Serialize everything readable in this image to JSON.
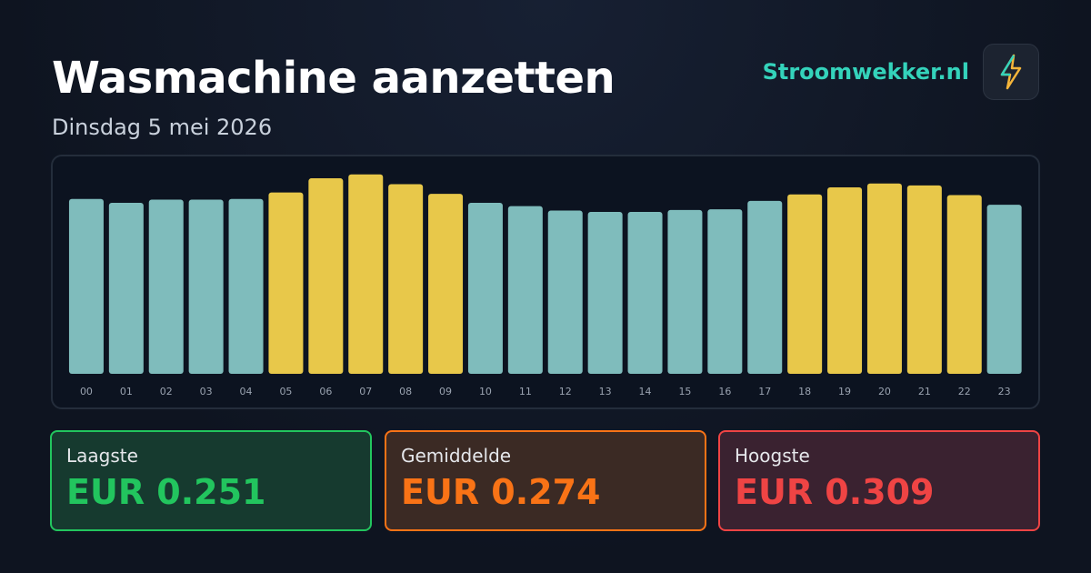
{
  "header": {
    "title": "Wasmachine aanzetten",
    "subtitle": "Dinsdag 5 mei 2026",
    "brand": "Stroomwekker.nl"
  },
  "chart_data": {
    "type": "bar",
    "categories": [
      "00",
      "01",
      "02",
      "03",
      "04",
      "05",
      "06",
      "07",
      "08",
      "09",
      "10",
      "11",
      "12",
      "13",
      "14",
      "15",
      "16",
      "17",
      "18",
      "19",
      "20",
      "21",
      "22",
      "23"
    ],
    "values": [
      0.271,
      0.265,
      0.27,
      0.27,
      0.271,
      0.281,
      0.303,
      0.309,
      0.294,
      0.279,
      0.265,
      0.26,
      0.253,
      0.251,
      0.251,
      0.254,
      0.255,
      0.268,
      0.278,
      0.289,
      0.295,
      0.292,
      0.277,
      0.262
    ],
    "colors": [
      "#7fbcbc",
      "#7fbcbc",
      "#7fbcbc",
      "#7fbcbc",
      "#7fbcbc",
      "#e8c84a",
      "#e8c84a",
      "#e8c84a",
      "#e8c84a",
      "#e8c84a",
      "#7fbcbc",
      "#7fbcbc",
      "#7fbcbc",
      "#7fbcbc",
      "#7fbcbc",
      "#7fbcbc",
      "#7fbcbc",
      "#7fbcbc",
      "#e8c84a",
      "#e8c84a",
      "#e8c84a",
      "#e8c84a",
      "#e8c84a",
      "#7fbcbc"
    ],
    "ylim": [
      0,
      0.32
    ]
  },
  "stats": [
    {
      "label": "Laagste",
      "value": "EUR 0.251"
    },
    {
      "label": "Gemiddelde",
      "value": "EUR 0.274"
    },
    {
      "label": "Hoogste",
      "value": "EUR 0.309"
    }
  ]
}
